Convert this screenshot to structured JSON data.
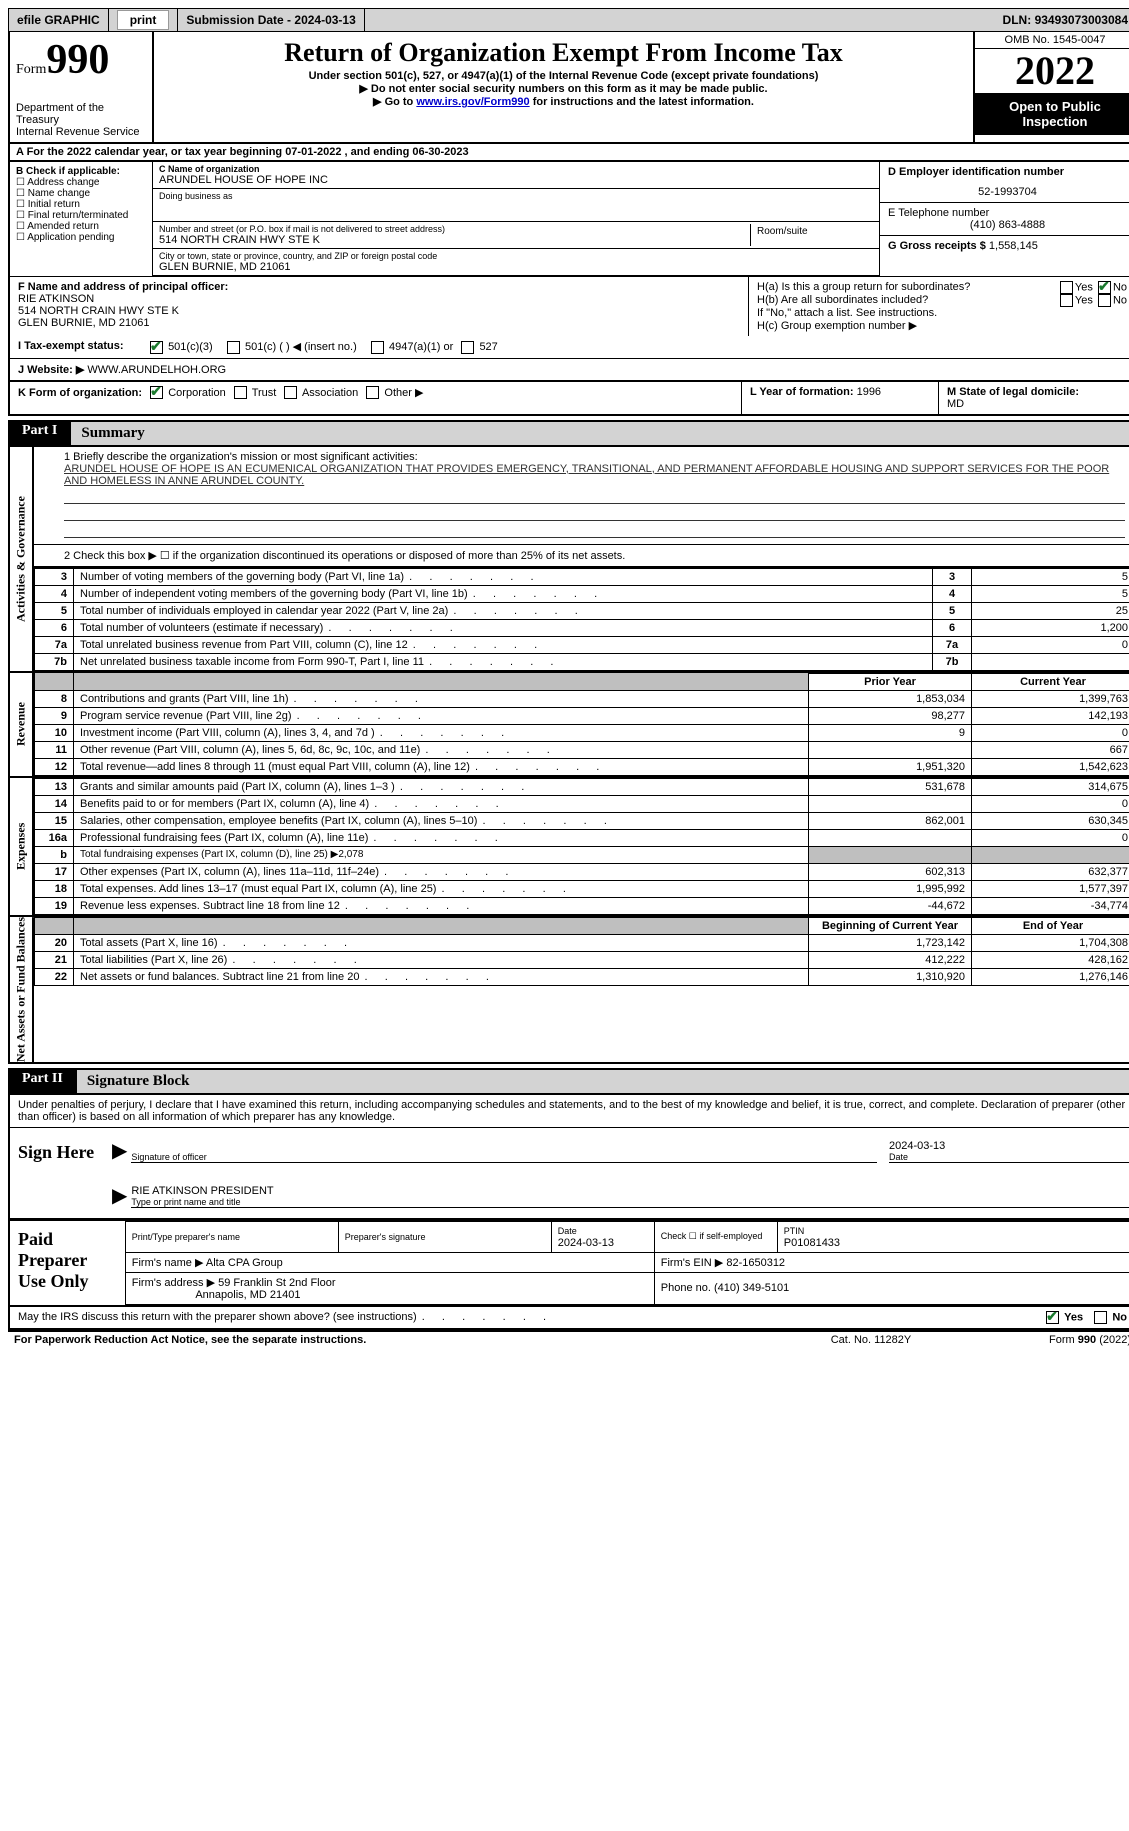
{
  "topbar": {
    "efile": "efile GRAPHIC",
    "print": "print",
    "sub_label": "Submission Date -",
    "sub_date": "2024-03-13",
    "dln_label": "DLN:",
    "dln": "93493073003084"
  },
  "header": {
    "form_small": "Form",
    "form_big": "990",
    "dept": "Department of the Treasury\nInternal Revenue Service",
    "title": "Return of Organization Exempt From Income Tax",
    "sub1": "Under section 501(c), 527, or 4947(a)(1) of the Internal Revenue Code (except private foundations)",
    "sub2": "▶ Do not enter social security numbers on this form as it may be made public.",
    "sub3_pre": "▶ Go to ",
    "sub3_link": "www.irs.gov/Form990",
    "sub3_post": " for instructions and the latest information.",
    "omb": "OMB No. 1545-0047",
    "year": "2022",
    "otp": "Open to Public Inspection"
  },
  "row_a": "A  For the 2022 calendar year, or tax year beginning 07-01-2022     , and ending 06-30-2023",
  "box_b": {
    "hdr": "B Check if applicable:",
    "items": [
      "Address change",
      "Name change",
      "Initial return",
      "Final return/terminated",
      "Amended return",
      "Application pending"
    ]
  },
  "box_c": {
    "name_lbl": "C Name of organization",
    "name": "ARUNDEL HOUSE OF HOPE INC",
    "dba_lbl": "Doing business as",
    "dba": "",
    "street_lbl": "Number and street (or P.O. box if mail is not delivered to street address)",
    "street": "514 NORTH CRAIN HWY STE K",
    "room_lbl": "Room/suite",
    "city_lbl": "City or town, state or province, country, and ZIP or foreign postal code",
    "city": "GLEN BURNIE, MD  21061"
  },
  "box_d": {
    "ein_lbl": "D Employer identification number",
    "ein": "52-1993704",
    "tel_lbl": "E Telephone number",
    "tel": "(410) 863-4888",
    "gross_lbl": "G Gross receipts $",
    "gross": "1,558,145"
  },
  "box_f": {
    "lbl": "F  Name and address of principal officer:",
    "name": "RIE ATKINSON",
    "addr1": "514 NORTH CRAIN HWY STE K",
    "addr2": "GLEN BURNIE, MD  21061"
  },
  "box_h": {
    "ha": "H(a)  Is this a group return for subordinates?",
    "hb": "H(b)  Are all subordinates included?",
    "hb_note": "If \"No,\" attach a list. See instructions.",
    "hc": "H(c)  Group exemption number ▶",
    "yes": "Yes",
    "no": "No"
  },
  "row_i": {
    "lbl": "I    Tax-exempt status:",
    "o1": "501(c)(3)",
    "o2": "501(c) (  ) ◀ (insert no.)",
    "o3": "4947(a)(1) or",
    "o4": "527"
  },
  "row_j": {
    "lbl": "J   Website: ▶",
    "val": "WWW.ARUNDELHOH.ORG"
  },
  "row_k": {
    "k": "K Form of organization:",
    "corp": "Corporation",
    "trust": "Trust",
    "assoc": "Association",
    "other": "Other ▶",
    "l": "L Year of formation:",
    "l_val": "1996",
    "m": "M State of legal domicile:",
    "m_val": "MD"
  },
  "part1": {
    "tag": "Part I",
    "title": "Summary"
  },
  "mission": {
    "lbl": "1   Briefly describe the organization's mission or most significant activities:",
    "text": "ARUNDEL HOUSE OF HOPE IS AN ECUMENICAL ORGANIZATION THAT PROVIDES EMERGENCY, TRANSITIONAL, AND PERMANENT AFFORDABLE HOUSING AND SUPPORT SERVICES FOR THE POOR AND HOMELESS IN ANNE ARUNDEL COUNTY."
  },
  "line2": "2    Check this box ▶ ☐  if the organization discontinued its operations or disposed of more than 25% of its net assets.",
  "vtabs": {
    "ag": "Activities & Governance",
    "rev": "Revenue",
    "exp": "Expenses",
    "net": "Net Assets or Fund Balances"
  },
  "cols": {
    "prior": "Prior Year",
    "current": "Current Year",
    "boy": "Beginning of Current Year",
    "eoy": "End of Year"
  },
  "gov_rows": [
    {
      "n": "3",
      "t": "Number of voting members of the governing body (Part VI, line 1a)",
      "v": "5"
    },
    {
      "n": "4",
      "t": "Number of independent voting members of the governing body (Part VI, line 1b)",
      "v": "5"
    },
    {
      "n": "5",
      "t": "Total number of individuals employed in calendar year 2022 (Part V, line 2a)",
      "v": "25"
    },
    {
      "n": "6",
      "t": "Total number of volunteers (estimate if necessary)",
      "v": "1,200"
    },
    {
      "n": "7a",
      "t": "Total unrelated business revenue from Part VIII, column (C), line 12",
      "v": "0"
    },
    {
      "n": "7b",
      "t": "Net unrelated business taxable income from Form 990-T, Part I, line 11",
      "v": ""
    }
  ],
  "rev_rows": [
    {
      "n": "8",
      "t": "Contributions and grants (Part VIII, line 1h)",
      "p": "1,853,034",
      "c": "1,399,763"
    },
    {
      "n": "9",
      "t": "Program service revenue (Part VIII, line 2g)",
      "p": "98,277",
      "c": "142,193"
    },
    {
      "n": "10",
      "t": "Investment income (Part VIII, column (A), lines 3, 4, and 7d )",
      "p": "9",
      "c": "0"
    },
    {
      "n": "11",
      "t": "Other revenue (Part VIII, column (A), lines 5, 6d, 8c, 9c, 10c, and 11e)",
      "p": "",
      "c": "667"
    },
    {
      "n": "12",
      "t": "Total revenue—add lines 8 through 11 (must equal Part VIII, column (A), line 12)",
      "p": "1,951,320",
      "c": "1,542,623"
    }
  ],
  "exp_rows": [
    {
      "n": "13",
      "t": "Grants and similar amounts paid (Part IX, column (A), lines 1–3 )",
      "p": "531,678",
      "c": "314,675"
    },
    {
      "n": "14",
      "t": "Benefits paid to or for members (Part IX, column (A), line 4)",
      "p": "",
      "c": "0"
    },
    {
      "n": "15",
      "t": "Salaries, other compensation, employee benefits (Part IX, column (A), lines 5–10)",
      "p": "862,001",
      "c": "630,345"
    },
    {
      "n": "16a",
      "t": "Professional fundraising fees (Part IX, column (A), line 11e)",
      "p": "",
      "c": "0"
    },
    {
      "n": "b",
      "t": "Total fundraising expenses (Part IX, column (D), line 25) ▶2,078",
      "shade": true
    },
    {
      "n": "17",
      "t": "Other expenses (Part IX, column (A), lines 11a–11d, 11f–24e)",
      "p": "602,313",
      "c": "632,377"
    },
    {
      "n": "18",
      "t": "Total expenses. Add lines 13–17 (must equal Part IX, column (A), line 25)",
      "p": "1,995,992",
      "c": "1,577,397"
    },
    {
      "n": "19",
      "t": "Revenue less expenses. Subtract line 18 from line 12",
      "p": "-44,672",
      "c": "-34,774"
    }
  ],
  "net_rows": [
    {
      "n": "20",
      "t": "Total assets (Part X, line 16)",
      "p": "1,723,142",
      "c": "1,704,308"
    },
    {
      "n": "21",
      "t": "Total liabilities (Part X, line 26)",
      "p": "412,222",
      "c": "428,162"
    },
    {
      "n": "22",
      "t": "Net assets or fund balances. Subtract line 21 from line 20",
      "p": "1,310,920",
      "c": "1,276,146"
    }
  ],
  "part2": {
    "tag": "Part II",
    "title": "Signature Block"
  },
  "sig": {
    "decl": "Under penalties of perjury, I declare that I have examined this return, including accompanying schedules and statements, and to the best of my knowledge and belief, it is true, correct, and complete. Declaration of preparer (other than officer) is based on all information of which preparer has any knowledge.",
    "sign_here": "Sign Here",
    "sig_of_officer": "Signature of officer",
    "date": "Date",
    "sig_date": "2024-03-13",
    "name_title": "RIE ATKINSON  PRESIDENT",
    "type_name": "Type or print name and title"
  },
  "paid": {
    "lbl": "Paid Preparer Use Only",
    "print_name_lbl": "Print/Type preparer's name",
    "print_name": "",
    "prep_sig_lbl": "Preparer's signature",
    "date_lbl": "Date",
    "date": "2024-03-13",
    "check_lbl": "Check ☐ if self-employed",
    "ptin_lbl": "PTIN",
    "ptin": "P01081433",
    "firm_name_lbl": "Firm's name    ▶",
    "firm_name": "Alta CPA Group",
    "firm_ein_lbl": "Firm's EIN ▶",
    "firm_ein": "82-1650312",
    "firm_addr_lbl": "Firm's address ▶",
    "firm_addr1": "59 Franklin St 2nd Floor",
    "firm_addr2": "Annapolis, MD  21401",
    "phone_lbl": "Phone no.",
    "phone": "(410) 349-5101"
  },
  "discuss": {
    "q": "May the IRS discuss this return with the preparer shown above? (see instructions)",
    "yes": "Yes",
    "no": "No"
  },
  "footer": {
    "pra": "For Paperwork Reduction Act Notice, see the separate instructions.",
    "cat": "Cat. No. 11282Y",
    "form": "Form 990 (2022)"
  }
}
